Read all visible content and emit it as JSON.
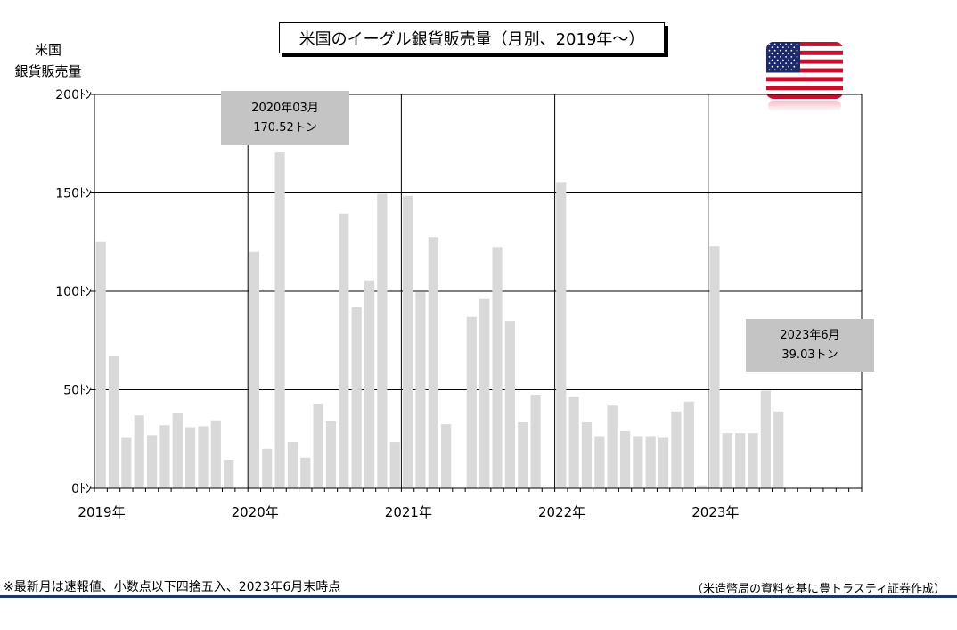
{
  "chart_data": {
    "type": "bar",
    "title": "米国のイーグル銀貨販売量（月別、2019年～）",
    "ylabel_lines": [
      "米国",
      "銀貨販売量"
    ],
    "ylim": [
      0,
      200
    ],
    "y_ticks": [
      {
        "value": 0,
        "label": "0ﾄﾝ"
      },
      {
        "value": 50,
        "label": "50ﾄﾝ"
      },
      {
        "value": 100,
        "label": "100ﾄﾝ"
      },
      {
        "value": 150,
        "label": "150ﾄﾝ"
      },
      {
        "value": 200,
        "label": "200ﾄﾝ"
      }
    ],
    "x_year_labels": [
      "2019年",
      "2020年",
      "2021年",
      "2022年",
      "2023年"
    ],
    "months_per_year": 12,
    "grid": true,
    "values": [
      125,
      67,
      26,
      37,
      27,
      32,
      38,
      31,
      31.5,
      34.5,
      14.5,
      0,
      120,
      20,
      170.52,
      23.5,
      15.5,
      43,
      34,
      139.5,
      92,
      105.5,
      149.5,
      23.5,
      148.5,
      99.5,
      127.5,
      32.5,
      0,
      87,
      96.5,
      122.5,
      85,
      33.5,
      47.5,
      0,
      155.5,
      46.5,
      33.5,
      26.5,
      42,
      29,
      26.5,
      26.5,
      26,
      39,
      44,
      1.5,
      123,
      28,
      28,
      28,
      49.5,
      39.03
    ],
    "annotations": [
      {
        "line1": "2020年03月",
        "line2": "170.52トン",
        "month_index": 14
      },
      {
        "line1": "2023年6月",
        "line2": "39.03トン",
        "month_index": 53
      }
    ],
    "footnote": "※最新月は速報値、小数点以下四捨五入、2023年6月末時点",
    "source": "（米造幣局の資料を基に豊トラスティ証券作成）",
    "bar_color": "#d9d9d9",
    "flag": "us-flag"
  }
}
